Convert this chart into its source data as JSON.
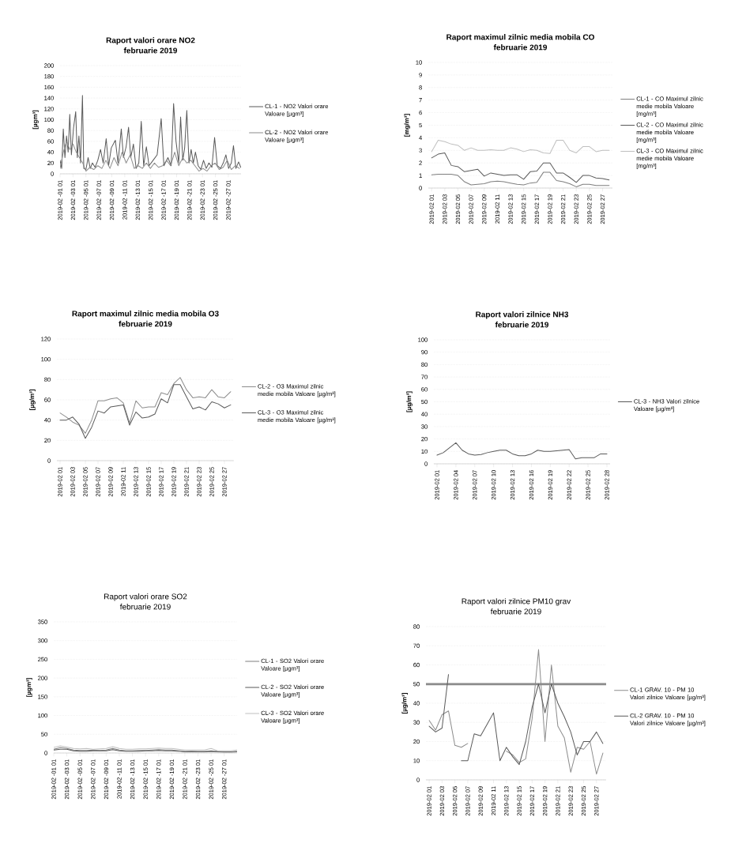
{
  "chart_data": [
    {
      "type": "line",
      "title": "Raport valori orare NO2",
      "subtitle": "februarie 2019",
      "ylabel": "[µgm³]",
      "grid": "y",
      "legend": "right",
      "xlim": [
        "2019-02-01T01:00",
        "2019-03-01T00:00"
      ],
      "xticks": [
        {
          "value": "2019-02-01T01:00",
          "label": "2019-02 -01 01"
        },
        {
          "value": "2019-02-03T01:00",
          "label": "2019-02 -03 01"
        },
        {
          "value": "2019-02-05T01:00",
          "label": "2019-02 -05 01"
        },
        {
          "value": "2019-02-07T01:00",
          "label": "2019-02 -07 01"
        },
        {
          "value": "2019-02-09T01:00",
          "label": "2019-02 -09 01"
        },
        {
          "value": "2019-02-11T01:00",
          "label": "2019-02 -11 01"
        },
        {
          "value": "2019-02-13T01:00",
          "label": "2019-02 -13 01"
        },
        {
          "value": "2019-02-15T01:00",
          "label": "2019-02 -15 01"
        },
        {
          "value": "2019-02-17T01:00",
          "label": "2019-02 -17 01"
        },
        {
          "value": "2019-02-19T01:00",
          "label": "2019-02 -19 01"
        },
        {
          "value": "2019-02-21T01:00",
          "label": "2019-02 -21 01"
        },
        {
          "value": "2019-02-23T01:00",
          "label": "2019-02 -23 01"
        },
        {
          "value": "2019-02-25T01:00",
          "label": "2019-02 -25 01"
        },
        {
          "value": "2019-02-27T01:00",
          "label": "2019-02 -27 01"
        }
      ],
      "ylim": [
        0,
        200
      ],
      "yticks": [
        0,
        20,
        40,
        60,
        80,
        100,
        120,
        140,
        160,
        180,
        200
      ],
      "series": [
        {
          "name": "CL-1 - NO2 Valori orare Valoare [µgm³]",
          "color": "#595959",
          "x": [
            "2019-02-01T01:00",
            "2019-02-01T07:00",
            "2019-02-01T13:00",
            "2019-02-01T19:00",
            "2019-02-02T01:00",
            "2019-02-02T07:00",
            "2019-02-02T13:00",
            "2019-02-02T19:00",
            "2019-02-03T03:00",
            "2019-02-03T11:00",
            "2019-02-03T17:00",
            "2019-02-03T23:00",
            "2019-02-04T05:00",
            "2019-02-04T12:00",
            "2019-02-04T17:00",
            "2019-02-05T01:00",
            "2019-02-05T09:00",
            "2019-02-05T17:00",
            "2019-02-06T01:00",
            "2019-02-06T11:00",
            "2019-02-06T21:00",
            "2019-02-07T07:00",
            "2019-02-07T17:00",
            "2019-02-08T04:00",
            "2019-02-08T13:00",
            "2019-02-08T23:00",
            "2019-02-09T14:00",
            "2019-02-10T00:00",
            "2019-02-10T12:00",
            "2019-02-10T20:00",
            "2019-02-11T06:00",
            "2019-02-11T15:00",
            "2019-02-11T23:00",
            "2019-02-12T09:00",
            "2019-02-12T19:00",
            "2019-02-13T05:00",
            "2019-02-13T14:00",
            "2019-02-13T23:00",
            "2019-02-14T09:00",
            "2019-02-14T19:00",
            "2019-02-15T10:00",
            "2019-02-16T01:00",
            "2019-02-16T16:00",
            "2019-02-17T02:00",
            "2019-02-17T17:00",
            "2019-02-18T05:00",
            "2019-02-18T14:00",
            "2019-02-18T23:00",
            "2019-02-19T09:00",
            "2019-02-19T16:00",
            "2019-02-20T00:00",
            "2019-02-20T07:00",
            "2019-02-20T15:00",
            "2019-02-20T23:00",
            "2019-02-21T07:00",
            "2019-02-21T15:00",
            "2019-02-21T23:00",
            "2019-02-22T09:00",
            "2019-02-22T19:00",
            "2019-02-23T05:00",
            "2019-02-23T15:00",
            "2019-02-24T01:00",
            "2019-02-24T12:00",
            "2019-02-24T22:00",
            "2019-02-25T08:00",
            "2019-02-25T20:00",
            "2019-02-26T06:00",
            "2019-02-26T16:00",
            "2019-02-27T02:00",
            "2019-02-27T12:00",
            "2019-02-27T20:00",
            "2019-02-28T05:00",
            "2019-02-28T15:00",
            "2019-02-28T23:00"
          ],
          "values": [
            25,
            10,
            83,
            30,
            70,
            40,
            110,
            35,
            85,
            115,
            30,
            70,
            20,
            145,
            10,
            8,
            30,
            10,
            20,
            12,
            25,
            45,
            20,
            65,
            15,
            48,
            62,
            20,
            83,
            30,
            50,
            86,
            30,
            55,
            10,
            20,
            97,
            15,
            50,
            15,
            25,
            35,
            102,
            15,
            30,
            15,
            130,
            60,
            20,
            105,
            25,
            48,
            117,
            20,
            45,
            20,
            40,
            15,
            8,
            25,
            10,
            20,
            12,
            67,
            15,
            10,
            20,
            35,
            10,
            20,
            52,
            10,
            22,
            12
          ]
        },
        {
          "name": "CL-2 - NO2 Valori orare Valoare [µgm³]",
          "color": "#8c8c8c",
          "x": [
            "2019-02-01T01:00",
            "2019-02-01T13:00",
            "2019-02-02T01:00",
            "2019-02-02T13:00",
            "2019-02-03T01:00",
            "2019-02-03T13:00",
            "2019-02-04T01:00",
            "2019-02-04T13:00",
            "2019-02-05T01:00",
            "2019-02-05T15:00",
            "2019-02-06T06:00",
            "2019-02-06T21:00",
            "2019-02-07T12:00",
            "2019-02-08T03:00",
            "2019-02-08T18:00",
            "2019-02-09T09:00",
            "2019-02-10T00:00",
            "2019-02-10T15:00",
            "2019-02-11T06:00",
            "2019-02-11T21:00",
            "2019-02-12T12:00",
            "2019-02-13T03:00",
            "2019-02-13T18:00",
            "2019-02-14T09:00",
            "2019-02-15T00:00",
            "2019-02-15T15:00",
            "2019-02-16T06:00",
            "2019-02-16T21:00",
            "2019-02-17T12:00",
            "2019-02-18T03:00",
            "2019-02-18T18:00",
            "2019-02-19T09:00",
            "2019-02-20T00:00",
            "2019-02-20T15:00",
            "2019-02-21T06:00",
            "2019-02-21T21:00",
            "2019-02-22T12:00",
            "2019-02-23T03:00",
            "2019-02-23T18:00",
            "2019-02-24T09:00",
            "2019-02-25T00:00",
            "2019-02-25T15:00",
            "2019-02-26T06:00",
            "2019-02-26T21:00",
            "2019-02-27T12:00",
            "2019-02-28T03:00",
            "2019-02-28T18:00"
          ],
          "values": [
            10,
            40,
            60,
            45,
            55,
            40,
            30,
            20,
            5,
            12,
            8,
            15,
            10,
            25,
            10,
            30,
            15,
            40,
            20,
            35,
            10,
            15,
            10,
            20,
            10,
            20,
            12,
            15,
            25,
            15,
            40,
            15,
            30,
            20,
            25,
            15,
            5,
            10,
            5,
            15,
            20,
            8,
            12,
            25,
            8,
            15,
            10
          ]
        }
      ]
    },
    {
      "type": "line",
      "title": "Raport maximul zilnic media mobila CO",
      "subtitle": "februarie 2019",
      "ylabel": "[mg/m³]",
      "grid": "y",
      "legend": "right",
      "categories": [
        "2019-02 01",
        null,
        "2019-02 03",
        null,
        "2019-02 05",
        null,
        "2019-02 07",
        null,
        "2019-02 09",
        null,
        "2019-02 11",
        null,
        "2019-02 13",
        null,
        "2019-02 15",
        null,
        "2019-02 17",
        null,
        "2019-02 19",
        null,
        "2019-02 21",
        null,
        "2019-02 23",
        null,
        "2019-02 25",
        null,
        "2019-02 27",
        null
      ],
      "ylim": [
        0,
        10
      ],
      "yticks": [
        0,
        1,
        2,
        3,
        4,
        5,
        6,
        7,
        8,
        9,
        10
      ],
      "series": [
        {
          "name": "CL-1 - CO Maximul zilnic medie mobila Valoare [mg/m³]",
          "color": "#7f7f7f",
          "values": [
            1.05,
            1.1,
            1.1,
            1.1,
            1.0,
            0.5,
            0.25,
            0.3,
            0.35,
            0.5,
            0.55,
            0.5,
            0.4,
            0.3,
            0.25,
            0.4,
            0.45,
            1.25,
            1.25,
            0.6,
            0.5,
            0.35,
            0.1,
            0.3,
            0.3,
            0.2,
            0.2,
            0.2
          ]
        },
        {
          "name": "CL-2 - CO Maximul zilnic medie mobila Valoare [mg/m³]",
          "color": "#595959",
          "values": [
            2.4,
            2.7,
            2.8,
            1.8,
            1.7,
            1.3,
            1.4,
            1.5,
            0.95,
            1.2,
            1.1,
            1.0,
            1.05,
            1.05,
            0.7,
            1.3,
            1.35,
            2.0,
            2.0,
            1.2,
            1.2,
            0.85,
            0.45,
            1.0,
            1.0,
            0.8,
            0.75,
            0.65
          ]
        },
        {
          "name": "CL-3 - CO Maximul zilnic medie mobila Valoare [mg/m³]",
          "color": "#bfbfbf",
          "values": [
            2.9,
            3.8,
            3.7,
            3.5,
            3.4,
            3.0,
            3.2,
            3.0,
            3.0,
            3.05,
            3.0,
            3.0,
            3.2,
            3.1,
            2.9,
            3.05,
            3.0,
            2.8,
            2.75,
            3.8,
            3.8,
            3.0,
            2.8,
            3.3,
            3.3,
            2.9,
            3.0,
            3.0
          ]
        }
      ]
    },
    {
      "type": "line",
      "title": "Raport maximul zilnic media mobila O3",
      "subtitle": "februarie 2019",
      "ylabel": "[µg/m³]",
      "grid": "y",
      "legend": "right",
      "categories": [
        "2019-02 01",
        null,
        "2019-02 03",
        null,
        "2019-02 05",
        null,
        "2019-02 07",
        null,
        "2019-02 09",
        null,
        "2019-02 11",
        null,
        "2019-02 13",
        null,
        "2019-02 15",
        null,
        "2019-02 17",
        null,
        "2019-02 19",
        null,
        "2019-02 21",
        null,
        "2019-02 23",
        null,
        "2019-02 25",
        null,
        "2019-02 27",
        null
      ],
      "ylim": [
        0,
        120
      ],
      "yticks": [
        0,
        20,
        40,
        60,
        80,
        100,
        120
      ],
      "series": [
        {
          "name": "CL-2 - O3 Maximul zilnic medie mobila Valoare [µg/m³]",
          "color": "#8c8c8c",
          "values": [
            47,
            43,
            38,
            35,
            27,
            40,
            59,
            59,
            61,
            62,
            57,
            37,
            59,
            52,
            53,
            53,
            67,
            65,
            76,
            82,
            70,
            62,
            63,
            62,
            70,
            63,
            62,
            68
          ]
        },
        {
          "name": "CL-3 - O3 Maximul zilnic medie mobila Valoare [µg/m³]",
          "color": "#595959",
          "values": [
            40,
            40,
            43,
            36,
            22,
            33,
            49,
            47,
            53,
            54,
            55,
            35,
            48,
            42,
            43,
            46,
            61,
            57,
            75,
            75,
            63,
            51,
            53,
            50,
            58,
            56,
            52,
            55
          ]
        }
      ]
    },
    {
      "type": "line",
      "title": "Raport valori zilnice NH3",
      "subtitle": "februarie 2019",
      "ylabel": "[µg/m³]",
      "grid": "y",
      "legend": "right",
      "categories": [
        "2019-02 01",
        null,
        null,
        "2019-02 04",
        null,
        null,
        "2019-02 07",
        null,
        null,
        "2019-02 10",
        null,
        null,
        "2019-02 13",
        null,
        null,
        "2019-02 16",
        null,
        null,
        "2019-02 19",
        null,
        null,
        "2019-02 22",
        null,
        null,
        "2019-02 25",
        null,
        null,
        "2019-02 28"
      ],
      "ylim": [
        0,
        100
      ],
      "yticks": [
        0,
        10,
        20,
        30,
        40,
        50,
        60,
        70,
        80,
        90,
        100
      ],
      "series": [
        {
          "name": "CL-3 - NH3 Valori zilnice Valoare [µg/m³]",
          "color": "#595959",
          "values": [
            7,
            9,
            13,
            17,
            11,
            8,
            7,
            7.5,
            9,
            10,
            11,
            11,
            8,
            6.5,
            6.5,
            8,
            11,
            10,
            10,
            10.5,
            11,
            11.5,
            4,
            5,
            5,
            5,
            8,
            8
          ]
        }
      ]
    },
    {
      "type": "line",
      "title": "Raport  valori orare SO2",
      "subtitle": "februarie 2019",
      "ylabel": "[µgm³]",
      "grid": "y",
      "legend": "right",
      "xlim": [
        "2019-02-01T01:00",
        "2019-03-01T00:00"
      ],
      "xticks": [
        {
          "value": "2019-02-01T01:00",
          "label": "2019-02 -01 01"
        },
        {
          "value": "2019-02-03T01:00",
          "label": "2019-02 -03 01"
        },
        {
          "value": "2019-02-05T01:00",
          "label": "2019-02 -05 01"
        },
        {
          "value": "2019-02-07T01:00",
          "label": "2019-02 -07 01"
        },
        {
          "value": "2019-02-09T01:00",
          "label": "2019-02 -09 01"
        },
        {
          "value": "2019-02-11T01:00",
          "label": "2019-02 -11 01"
        },
        {
          "value": "2019-02-13T01:00",
          "label": "2019-02 -13 01"
        },
        {
          "value": "2019-02-15T01:00",
          "label": "2019-02 -15 01"
        },
        {
          "value": "2019-02-17T01:00",
          "label": "2019-02 -17 01"
        },
        {
          "value": "2019-02-19T01:00",
          "label": "2019-02 -19 01"
        },
        {
          "value": "2019-02-21T01:00",
          "label": "2019-02 -21 01"
        },
        {
          "value": "2019-02-23T01:00",
          "label": "2019-02 -23 01"
        },
        {
          "value": "2019-02-25T01:00",
          "label": "2019-02 -25 01"
        },
        {
          "value": "2019-02-27T01:00",
          "label": "2019-02 -27 01"
        }
      ],
      "ylim": [
        0,
        350
      ],
      "yticks": [
        0,
        50,
        100,
        150,
        200,
        250,
        300,
        350
      ],
      "series": [
        {
          "name": "CL-1 - SO2 Valori orare Valoare [µgm³]",
          "color": "#7f7f7f",
          "x": [
            "2019-02-01T01:00",
            "2019-02-02T01:00",
            "2019-02-03T01:00",
            "2019-02-04T01:00",
            "2019-02-05T01:00",
            "2019-02-06T01:00",
            "2019-02-07T01:00",
            "2019-02-08T01:00",
            "2019-02-09T01:00",
            "2019-02-10T01:00",
            "2019-02-11T01:00",
            "2019-02-12T01:00",
            "2019-02-13T01:00",
            "2019-02-14T01:00",
            "2019-02-15T01:00",
            "2019-02-16T01:00",
            "2019-02-17T01:00",
            "2019-02-18T01:00",
            "2019-02-19T01:00",
            "2019-02-20T01:00",
            "2019-02-21T01:00",
            "2019-02-22T01:00",
            "2019-02-23T01:00",
            "2019-02-24T01:00",
            "2019-02-25T01:00",
            "2019-02-26T01:00",
            "2019-02-27T01:00",
            "2019-02-28T01:00",
            "2019-02-28T23:00"
          ],
          "values": [
            10,
            14,
            12,
            8,
            7,
            7,
            8,
            7,
            8,
            12,
            8,
            6,
            6,
            7,
            7,
            8,
            9,
            8,
            8,
            6,
            4,
            5,
            4,
            4,
            6,
            4,
            3,
            3,
            4
          ]
        },
        {
          "name": "CL-2 - SO2 Valori orare Valoare [µgm³]",
          "color": "#595959",
          "x": [
            "2019-02-01T01:00",
            "2019-02-02T01:00",
            "2019-02-03T01:00",
            "2019-02-04T01:00",
            "2019-02-05T01:00",
            "2019-02-06T01:00",
            "2019-02-07T01:00",
            "2019-02-08T01:00",
            "2019-02-09T01:00",
            "2019-02-10T01:00",
            "2019-02-11T01:00",
            "2019-02-12T01:00",
            "2019-02-13T01:00",
            "2019-02-14T01:00",
            "2019-02-15T01:00",
            "2019-02-16T01:00",
            "2019-02-17T01:00",
            "2019-02-18T01:00",
            "2019-02-19T01:00",
            "2019-02-20T01:00",
            "2019-02-21T01:00",
            "2019-02-22T01:00",
            "2019-02-23T01:00",
            "2019-02-24T01:00",
            "2019-02-25T01:00",
            "2019-02-26T01:00",
            "2019-02-27T01:00",
            "2019-02-28T01:00",
            "2019-02-28T23:00"
          ],
          "values": [
            8,
            10,
            10,
            6,
            5,
            5,
            6,
            6,
            6,
            9,
            6,
            5,
            5,
            5,
            6,
            6,
            7,
            6,
            6,
            5,
            3,
            3,
            3,
            3,
            4,
            3,
            2,
            2,
            3
          ]
        },
        {
          "name": "CL-3 - SO2 Valori orare Valoare [µgm³]",
          "color": "#bfbfbf",
          "x": [
            "2019-02-01T01:00",
            "2019-02-02T01:00",
            "2019-02-03T01:00",
            "2019-02-04T01:00",
            "2019-02-05T01:00",
            "2019-02-06T01:00",
            "2019-02-07T01:00",
            "2019-02-08T01:00",
            "2019-02-09T01:00",
            "2019-02-10T01:00",
            "2019-02-11T01:00",
            "2019-02-12T01:00",
            "2019-02-13T01:00",
            "2019-02-14T01:00",
            "2019-02-15T01:00",
            "2019-02-16T01:00",
            "2019-02-17T01:00",
            "2019-02-18T01:00",
            "2019-02-19T01:00",
            "2019-02-20T01:00",
            "2019-02-21T01:00",
            "2019-02-22T01:00",
            "2019-02-23T01:00",
            "2019-02-24T01:00",
            "2019-02-25T01:00",
            "2019-02-26T01:00",
            "2019-02-27T01:00",
            "2019-02-28T01:00",
            "2019-02-28T23:00"
          ],
          "values": [
            15,
            19,
            16,
            12,
            11,
            12,
            10,
            11,
            12,
            17,
            12,
            10,
            10,
            11,
            11,
            12,
            13,
            12,
            12,
            10,
            8,
            8,
            8,
            8,
            12,
            6,
            6,
            6,
            8
          ]
        }
      ]
    },
    {
      "type": "line",
      "title": "Raport valori zilnice PM10 grav",
      "subtitle": "februarie 2019",
      "ylabel": "[µg/m³]",
      "grid": "y",
      "legend": "right",
      "categories": [
        "2019-02 01",
        null,
        "2019-02 03",
        null,
        "2019-02 05",
        null,
        "2019-02 07",
        null,
        "2019-02 09",
        null,
        "2019-02 11",
        null,
        "2019-02 13",
        null,
        "2019-02 15",
        null,
        "2019-02 17",
        null,
        "2019-02 19",
        null,
        "2019-02 21",
        null,
        "2019-02 23",
        null,
        "2019-02 25",
        null,
        "2019-02 27",
        null
      ],
      "ylim": [
        0,
        80
      ],
      "yticks": [
        0,
        10,
        20,
        30,
        40,
        50,
        60,
        70,
        80
      ],
      "ref_lines": [
        {
          "axis": "y",
          "value": 50,
          "color": "#8c8c8c"
        }
      ],
      "series": [
        {
          "name": "CL-1 GRAV. 10 - PM 10 Valori zilnice Valoare [µg/m³]",
          "color": "#8c8c8c",
          "values": [
            31,
            26,
            34,
            36,
            18,
            17,
            19,
            null,
            null,
            null,
            null,
            null,
            15,
            13,
            9,
            11,
            32,
            68,
            20,
            60,
            28,
            22,
            4,
            17,
            16,
            20,
            3,
            14
          ]
        },
        {
          "name": "CL-2 GRAV. 10 - PM 10 Valori zilnice Valoare [µg/m³]",
          "color": "#595959",
          "values": [
            28,
            25,
            27,
            55,
            null,
            10,
            10,
            24,
            23,
            29,
            35,
            10,
            17,
            12,
            8,
            20,
            38,
            50,
            35,
            50,
            40,
            33,
            25,
            13,
            20,
            20,
            25,
            19
          ]
        }
      ]
    }
  ]
}
